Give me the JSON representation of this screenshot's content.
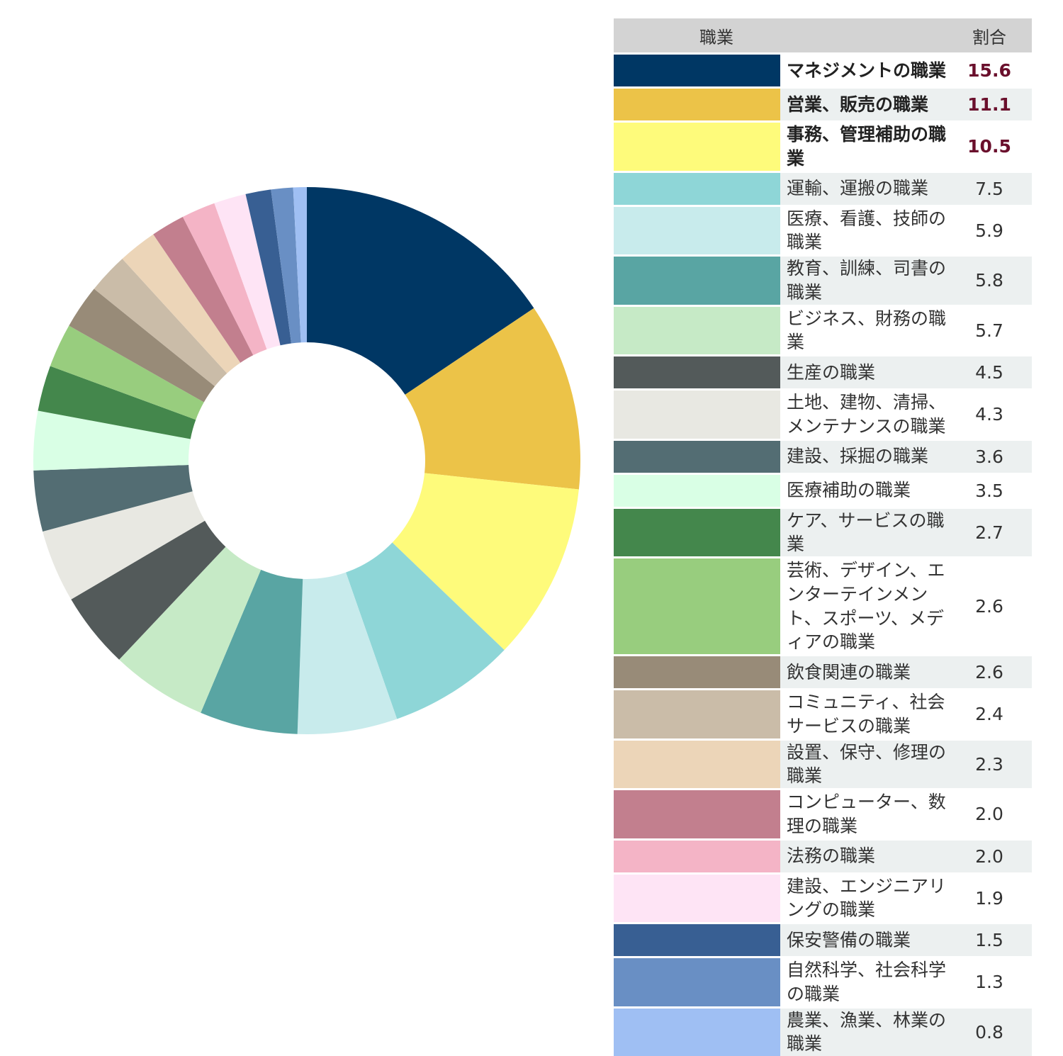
{
  "table": {
    "header_occupation": "職業",
    "header_percent": "割合"
  },
  "chart_data": {
    "type": "pie",
    "donut": true,
    "rows": [
      {
        "label": "マネジメントの職業",
        "value": 15.6,
        "display": "15.6",
        "color": "#003764",
        "highlight": true
      },
      {
        "label": "営業、販売の職業",
        "value": 11.1,
        "display": "11.1",
        "color": "#ecc348",
        "highlight": true
      },
      {
        "label": "事務、管理補助の職業",
        "value": 10.5,
        "display": "10.5",
        "color": "#fefb7b",
        "highlight": true
      },
      {
        "label": "運輸、運搬の職業",
        "value": 7.5,
        "display": "7.5",
        "color": "#8ed6d7",
        "highlight": false
      },
      {
        "label": "医療、看護、技師の職業",
        "value": 5.9,
        "display": "5.9",
        "color": "#c8ebec",
        "highlight": false
      },
      {
        "label": "教育、訓練、司書の職業",
        "value": 5.8,
        "display": "5.8",
        "color": "#59a5a3",
        "highlight": false
      },
      {
        "label": "ビジネス、財務の職業",
        "value": 5.7,
        "display": "5.7",
        "color": "#c6eac6",
        "highlight": false
      },
      {
        "label": "生産の職業",
        "value": 4.5,
        "display": "4.5",
        "color": "#535a5a",
        "highlight": false
      },
      {
        "label": "土地、建物、清掃、メンテナンスの職業",
        "value": 4.3,
        "display": "4.3",
        "color": "#e8e8e2",
        "highlight": false
      },
      {
        "label": "建設、採掘の職業",
        "value": 3.6,
        "display": "3.6",
        "color": "#536d73",
        "highlight": false
      },
      {
        "label": "医療補助の職業",
        "value": 3.5,
        "display": "3.5",
        "color": "#d9ffe5",
        "highlight": false
      },
      {
        "label": "ケア、サービスの職業",
        "value": 2.7,
        "display": "2.7",
        "color": "#44874c",
        "highlight": false
      },
      {
        "label": "芸術、デザイン、エンターテインメント、スポーツ、メディアの職業",
        "value": 2.6,
        "display": "2.6",
        "color": "#98cd7e",
        "highlight": false
      },
      {
        "label": "飲食関連の職業",
        "value": 2.6,
        "display": "2.6",
        "color": "#988b78",
        "highlight": false
      },
      {
        "label": "コミュニティ、社会サービスの職業",
        "value": 2.4,
        "display": "2.4",
        "color": "#cabca8",
        "highlight": false
      },
      {
        "label": "設置、保守、修理の職業",
        "value": 2.3,
        "display": "2.3",
        "color": "#ecd5b8",
        "highlight": false
      },
      {
        "label": "コンピューター、数理の職業",
        "value": 2.0,
        "display": "2.0",
        "color": "#c27f8e",
        "highlight": false
      },
      {
        "label": "法務の職業",
        "value": 2.0,
        "display": "2.0",
        "color": "#f4b4c6",
        "highlight": false
      },
      {
        "label": "建設、エンジニアリングの職業",
        "value": 1.9,
        "display": "1.9",
        "color": "#fee4f5",
        "highlight": false
      },
      {
        "label": "保安警備の職業",
        "value": 1.5,
        "display": "1.5",
        "color": "#385f93",
        "highlight": false
      },
      {
        "label": "自然科学、社会科学の職業",
        "value": 1.3,
        "display": "1.3",
        "color": "#698fc4",
        "highlight": false
      },
      {
        "label": "農業、漁業、林業の職業",
        "value": 0.8,
        "display": "0.8",
        "color": "#9fbff3",
        "highlight": false
      }
    ]
  }
}
